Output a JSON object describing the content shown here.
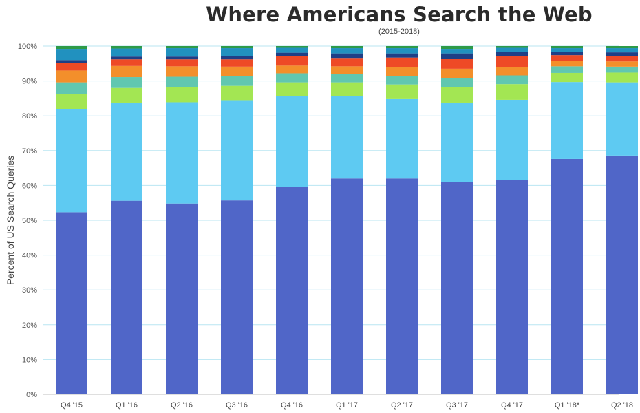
{
  "chart_data": {
    "type": "bar",
    "stacked": true,
    "title": "Where Americans Search the Web",
    "subtitle": "(2015-2018)",
    "ylabel": "Percent of US Search Queries",
    "xlabel": "",
    "ylim": [
      0,
      100
    ],
    "yticks": [
      "0%",
      "10%",
      "20%",
      "30%",
      "40%",
      "50%",
      "60%",
      "70%",
      "80%",
      "90%",
      "100%"
    ],
    "grid": true,
    "categories": [
      "Q4 '15",
      "Q1 '16",
      "Q2 '16",
      "Q3 '16",
      "Q4 '16",
      "Q1 '17",
      "Q2 '17",
      "Q3 '17",
      "Q4 '17",
      "Q1 '18*",
      "Q2 '18"
    ],
    "series": [
      {
        "color": "#5066c8",
        "values": [
          52.3,
          55.6,
          54.8,
          55.7,
          59.5,
          62.0,
          62.0,
          61.0,
          61.5,
          67.6,
          68.6
        ]
      },
      {
        "color": "#5ecaf2",
        "values": [
          29.6,
          28.2,
          29.1,
          28.6,
          26.1,
          23.6,
          22.8,
          22.8,
          23.1,
          22.1,
          21.0
        ]
      },
      {
        "color": "#a3e653",
        "values": [
          4.3,
          4.2,
          4.3,
          4.3,
          4.0,
          4.0,
          4.2,
          4.5,
          4.5,
          2.6,
          2.8
        ]
      },
      {
        "color": "#61c7b0",
        "values": [
          3.4,
          3.1,
          3.0,
          2.9,
          2.6,
          2.3,
          2.4,
          2.6,
          2.5,
          1.9,
          1.7
        ]
      },
      {
        "color": "#f38f2b",
        "values": [
          3.4,
          3.2,
          3.0,
          2.6,
          2.2,
          2.3,
          2.6,
          2.6,
          2.4,
          1.6,
          1.5
        ]
      },
      {
        "color": "#ee4a26",
        "values": [
          2.1,
          1.9,
          2.0,
          2.1,
          2.8,
          2.4,
          2.7,
          2.9,
          3.1,
          1.6,
          1.5
        ]
      },
      {
        "color": "#1f3f86",
        "values": [
          0.9,
          0.8,
          0.8,
          0.9,
          0.9,
          1.3,
          1.2,
          1.5,
          1.2,
          0.9,
          1.1
        ]
      },
      {
        "color": "#2191bf",
        "values": [
          3.2,
          2.3,
          2.4,
          2.3,
          1.4,
          1.5,
          1.5,
          1.3,
          1.2,
          1.1,
          1.2
        ]
      },
      {
        "color": "#2e9b48",
        "values": [
          0.8,
          0.7,
          0.6,
          0.6,
          0.5,
          0.6,
          0.6,
          0.8,
          0.5,
          0.6,
          0.6
        ]
      }
    ]
  }
}
